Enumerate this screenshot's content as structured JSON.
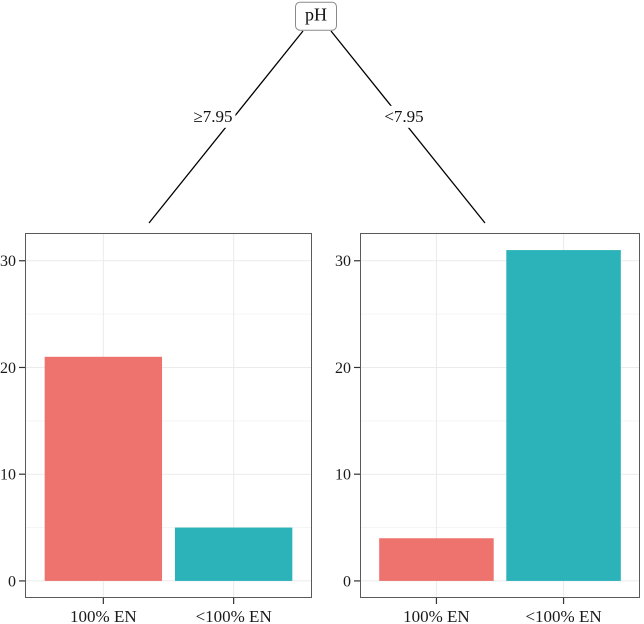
{
  "tree": {
    "root_label": "pH",
    "edges": [
      {
        "label": "≥7.95"
      },
      {
        "label": "<7.95"
      }
    ]
  },
  "chart_data": [
    {
      "type": "bar",
      "branch_label": "≥7.95",
      "categories": [
        "100% EN",
        "<100% EN"
      ],
      "values": [
        21,
        5
      ],
      "bar_colors": [
        "#ee736e",
        "#2cb3ba"
      ],
      "title": "",
      "xlabel": "",
      "ylabel": "",
      "yticks": [
        0,
        10,
        20,
        30
      ],
      "yticks_minor": [
        5,
        15,
        25
      ],
      "ylim": [
        0,
        33
      ],
      "grid": true,
      "legend": "none"
    },
    {
      "type": "bar",
      "branch_label": "<7.95",
      "categories": [
        "100% EN",
        "<100% EN"
      ],
      "values": [
        4,
        31
      ],
      "bar_colors": [
        "#ee736e",
        "#2cb3ba"
      ],
      "title": "",
      "xlabel": "",
      "ylabel": "",
      "yticks": [
        0,
        10,
        20,
        30
      ],
      "yticks_minor": [
        5,
        15,
        25
      ],
      "ylim": [
        0,
        33
      ],
      "grid": true,
      "legend": "none"
    }
  ],
  "colors": {
    "bar_salmon": "#ee736e",
    "bar_teal": "#2cb3ba",
    "panel_border": "#5a5a5a",
    "grid_major": "#ebebeb",
    "grid_minor": "#f5f5f5",
    "axis_text": "#1a1a1a",
    "tick_mark": "#333333",
    "branch_line": "#000000"
  }
}
